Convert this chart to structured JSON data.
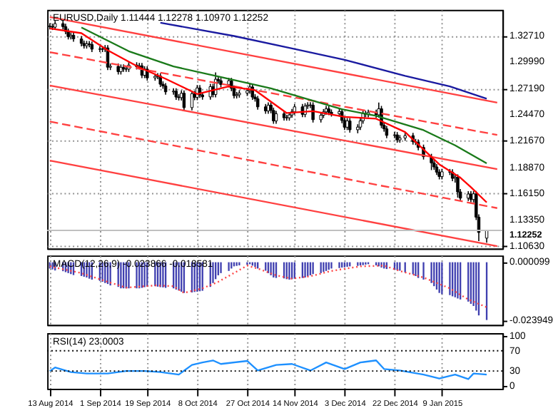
{
  "chart_data": [
    {
      "type": "candlestick",
      "title": "EURUSD,Daily  1.11444 1.12278 1.10970 1.12252",
      "x": [
        "2014-08-13",
        "2014-08-14",
        "2014-08-15",
        "2014-08-18",
        "2014-08-19",
        "2014-08-20",
        "2014-08-21",
        "2014-08-22",
        "2014-08-25",
        "2014-08-26",
        "2014-08-27",
        "2014-08-28",
        "2014-08-29",
        "2014-09-01",
        "2014-09-02",
        "2014-09-03",
        "2014-09-04",
        "2014-09-05",
        "2014-09-08",
        "2014-09-09",
        "2014-09-10",
        "2014-09-11",
        "2014-09-12",
        "2014-09-15",
        "2014-09-16",
        "2014-09-17",
        "2014-09-18",
        "2014-09-19",
        "2014-09-22",
        "2014-09-23",
        "2014-09-24",
        "2014-09-25",
        "2014-09-26",
        "2014-09-29",
        "2014-09-30",
        "2014-10-01",
        "2014-10-02",
        "2014-10-03",
        "2014-10-06",
        "2014-10-07",
        "2014-10-08",
        "2014-10-09",
        "2014-10-10",
        "2014-10-13",
        "2014-10-14",
        "2014-10-15",
        "2014-10-16",
        "2014-10-17",
        "2014-10-20",
        "2014-10-21",
        "2014-10-22",
        "2014-10-23",
        "2014-10-24",
        "2014-10-27",
        "2014-10-28",
        "2014-10-29",
        "2014-10-30",
        "2014-10-31",
        "2014-11-03",
        "2014-11-04",
        "2014-11-05",
        "2014-11-06",
        "2014-11-07",
        "2014-11-10",
        "2014-11-11",
        "2014-11-12",
        "2014-11-13",
        "2014-11-14",
        "2014-11-17",
        "2014-11-18",
        "2014-11-19",
        "2014-11-20",
        "2014-11-21",
        "2014-11-24",
        "2014-11-25",
        "2014-11-26",
        "2014-11-27",
        "2014-11-28",
        "2014-12-01",
        "2014-12-02",
        "2014-12-03",
        "2014-12-04",
        "2014-12-05",
        "2014-12-08",
        "2014-12-09",
        "2014-12-10",
        "2014-12-11",
        "2014-12-12",
        "2014-12-15",
        "2014-12-16",
        "2014-12-17",
        "2014-12-18",
        "2014-12-19",
        "2014-12-22",
        "2014-12-23",
        "2014-12-24",
        "2014-12-26",
        "2014-12-29",
        "2014-12-30",
        "2014-12-31",
        "2015-01-02",
        "2015-01-05",
        "2015-01-06",
        "2015-01-07",
        "2015-01-08",
        "2015-01-09",
        "2015-01-12",
        "2015-01-13",
        "2015-01-14",
        "2015-01-15",
        "2015-01-16",
        "2015-01-19",
        "2015-01-20",
        "2015-01-21",
        "2015-01-22",
        "2015-01-23",
        "2015-01-26"
      ],
      "xlim": [
        "2014-08-12",
        "2015-02-01"
      ],
      "xticks": [
        {
          "value": "2014-08-13",
          "label": null
        },
        {
          "value": "2014-09-01",
          "label": null
        },
        {
          "value": "2014-09-19",
          "label": null
        },
        {
          "value": "2014-10-08",
          "label": null
        },
        {
          "value": "2014-10-27",
          "label": null
        },
        {
          "value": "2014-11-14",
          "label": null
        },
        {
          "value": "2014-12-03",
          "label": null
        },
        {
          "value": "2014-12-22",
          "label": null
        },
        {
          "value": "2015-01-09",
          "label": null
        }
      ],
      "ohlc": [
        [
          1.3375,
          1.3405,
          1.334,
          1.337
        ],
        [
          1.337,
          1.34,
          1.3333,
          1.3363
        ],
        [
          1.3363,
          1.343,
          1.3333,
          1.34
        ],
        [
          1.34,
          1.343,
          1.3339,
          1.3369
        ],
        [
          1.3369,
          1.3399,
          1.3288,
          1.3318
        ],
        [
          1.3318,
          1.3348,
          1.3234,
          1.3264
        ],
        [
          1.3264,
          1.3308,
          1.3234,
          1.3278
        ],
        [
          1.3278,
          1.3308,
          1.321,
          1.324
        ],
        [
          1.324,
          1.327,
          1.3162,
          1.3192
        ],
        [
          1.3192,
          1.3222,
          1.3138,
          1.3168
        ],
        [
          1.3168,
          1.3218,
          1.3138,
          1.3188
        ],
        [
          1.3188,
          1.3218,
          1.3151,
          1.3181
        ],
        [
          1.3181,
          1.3211,
          1.3102,
          1.3132
        ],
        [
          1.3132,
          1.3162,
          1.3101,
          1.3131
        ],
        [
          1.3131,
          1.3162,
          1.3101,
          1.3132
        ],
        [
          1.3132,
          1.3175,
          1.3102,
          1.3145
        ],
        [
          1.3145,
          1.3175,
          1.2912,
          1.2942
        ],
        [
          1.2942,
          1.2981,
          1.2912,
          1.2951
        ],
        [
          1.2951,
          1.2981,
          1.2865,
          1.2895
        ],
        [
          1.2895,
          1.2971,
          1.2865,
          1.2941
        ],
        [
          1.2941,
          1.2971,
          1.2892,
          1.2922
        ],
        [
          1.2922,
          1.2952,
          1.2892,
          1.2922
        ],
        [
          1.2922,
          1.2994,
          1.2892,
          1.2964
        ],
        [
          1.2964,
          1.2994,
          1.2918,
          1.2948
        ],
        [
          1.2948,
          1.2987,
          1.2918,
          1.2957
        ],
        [
          1.2957,
          1.2987,
          1.2827,
          1.2857
        ],
        [
          1.2857,
          1.2952,
          1.2827,
          1.2922
        ],
        [
          1.2922,
          1.2952,
          1.28,
          1.283
        ],
        [
          1.283,
          1.2876,
          1.28,
          1.2846
        ],
        [
          1.2846,
          1.2879,
          1.2816,
          1.2849
        ],
        [
          1.2849,
          1.2879,
          1.2733,
          1.2763
        ],
        [
          1.2763,
          1.2793,
          1.2715,
          1.2745
        ],
        [
          1.2745,
          1.2775,
          1.2653,
          1.2683
        ],
        [
          1.2683,
          1.272,
          1.2653,
          1.269
        ],
        [
          1.269,
          1.272,
          1.2598,
          1.2628
        ],
        [
          1.2628,
          1.2658,
          1.2592,
          1.2622
        ],
        [
          1.2622,
          1.2698,
          1.2592,
          1.2668
        ],
        [
          1.2668,
          1.2698,
          1.2487,
          1.2517
        ],
        [
          1.2517,
          1.2694,
          1.2487,
          1.2664
        ],
        [
          1.2664,
          1.2694,
          1.2595,
          1.2625
        ],
        [
          1.2625,
          1.2754,
          1.2595,
          1.2724
        ],
        [
          1.2724,
          1.2754,
          1.262,
          1.265
        ],
        [
          1.265,
          1.268,
          1.26,
          1.263
        ],
        [
          1.263,
          1.2767,
          1.26,
          1.2737
        ],
        [
          1.2737,
          1.2767,
          1.2625,
          1.2655
        ],
        [
          1.2655,
          1.2887,
          1.2625,
          1.2815
        ],
        [
          1.2815,
          1.2845,
          1.277,
          1.28
        ],
        [
          1.28,
          1.283,
          1.273,
          1.276
        ],
        [
          1.276,
          1.283,
          1.273,
          1.28
        ],
        [
          1.28,
          1.283,
          1.269,
          1.272
        ],
        [
          1.272,
          1.275,
          1.2613,
          1.2643
        ],
        [
          1.2643,
          1.2682,
          1.2613,
          1.2652
        ],
        [
          1.2652,
          1.27,
          1.2622,
          1.267
        ],
        [
          1.267,
          1.2725,
          1.264,
          1.2695
        ],
        [
          1.2695,
          1.2764,
          1.2665,
          1.2734
        ],
        [
          1.2734,
          1.2764,
          1.2598,
          1.2628
        ],
        [
          1.2628,
          1.2658,
          1.258,
          1.261
        ],
        [
          1.261,
          1.264,
          1.2495,
          1.2525
        ],
        [
          1.2525,
          1.2555,
          1.2452,
          1.2482
        ],
        [
          1.2482,
          1.2573,
          1.2452,
          1.2543
        ],
        [
          1.2543,
          1.2573,
          1.2457,
          1.2487
        ],
        [
          1.2487,
          1.2517,
          1.2347,
          1.2377
        ],
        [
          1.2377,
          1.2482,
          1.2347,
          1.2452
        ],
        [
          1.2452,
          1.2482,
          1.238,
          1.241
        ],
        [
          1.241,
          1.244,
          1.238,
          1.241
        ],
        [
          1.241,
          1.247,
          1.238,
          1.244
        ],
        [
          1.244,
          1.2503,
          1.241,
          1.2473
        ],
        [
          1.2473,
          1.2555,
          1.2443,
          1.2525
        ],
        [
          1.2525,
          1.2555,
          1.2416,
          1.2446
        ],
        [
          1.2446,
          1.2563,
          1.2416,
          1.2533
        ],
        [
          1.2533,
          1.2574,
          1.2503,
          1.2544
        ],
        [
          1.2544,
          1.2574,
          1.2513,
          1.2543
        ],
        [
          1.2543,
          1.2573,
          1.236,
          1.239
        ],
        [
          1.239,
          1.2467,
          1.236,
          1.2437
        ],
        [
          1.2437,
          1.2502,
          1.2407,
          1.2472
        ],
        [
          1.2472,
          1.2534,
          1.2442,
          1.2504
        ],
        [
          1.2504,
          1.2534,
          1.2438,
          1.2468
        ],
        [
          1.2468,
          1.2498,
          1.2423,
          1.2453
        ],
        [
          1.2453,
          1.2506,
          1.2423,
          1.2476
        ],
        [
          1.2476,
          1.2506,
          1.2352,
          1.2382
        ],
        [
          1.2382,
          1.2412,
          1.2281,
          1.2311
        ],
        [
          1.2311,
          1.2407,
          1.2281,
          1.2377
        ],
        [
          1.2377,
          1.2407,
          1.2254,
          1.2284
        ],
        [
          1.2284,
          1.2342,
          1.2247,
          1.2312
        ],
        [
          1.2312,
          1.2408,
          1.2282,
          1.2378
        ],
        [
          1.2378,
          1.2485,
          1.2348,
          1.2455
        ],
        [
          1.2455,
          1.2485,
          1.2415,
          1.2445
        ],
        [
          1.2445,
          1.2496,
          1.2415,
          1.2466
        ],
        [
          1.2466,
          1.2496,
          1.2411,
          1.2441
        ],
        [
          1.2441,
          1.257,
          1.2411,
          1.2505
        ],
        [
          1.2505,
          1.2535,
          1.2301,
          1.2331
        ],
        [
          1.2331,
          1.2361,
          1.2264,
          1.2294
        ],
        [
          1.2294,
          1.2324,
          1.2195,
          1.2225
        ],
        [
          1.2225,
          1.226,
          1.2195,
          1.223
        ],
        [
          1.223,
          1.226,
          1.2148,
          1.2178
        ],
        [
          1.2178,
          1.2228,
          1.2148,
          1.2198
        ],
        [
          1.2198,
          1.2252,
          1.2168,
          1.2222
        ],
        [
          1.2222,
          1.2252,
          1.2128,
          1.2158
        ],
        [
          1.2158,
          1.2188,
          1.2123,
          1.2153
        ],
        [
          1.2153,
          1.2183,
          1.2068,
          1.2098
        ],
        [
          1.2098,
          1.2128,
          1.1971,
          1.2001
        ],
        [
          1.2001,
          1.2031,
          1.186,
          1.1936
        ],
        [
          1.1936,
          1.1966,
          1.1863,
          1.1893
        ],
        [
          1.1893,
          1.1923,
          1.1808,
          1.1838
        ],
        [
          1.1838,
          1.1868,
          1.1762,
          1.1792
        ],
        [
          1.1792,
          1.1872,
          1.1762,
          1.1842
        ],
        [
          1.1842,
          1.1872,
          1.1808,
          1.1838
        ],
        [
          1.1838,
          1.1868,
          1.1743,
          1.1773
        ],
        [
          1.1773,
          1.1815,
          1.1729,
          1.1785
        ],
        [
          1.1785,
          1.1815,
          1.157,
          1.163
        ],
        [
          1.163,
          1.166,
          1.1535,
          1.1565
        ],
        [
          1.1565,
          1.1638,
          1.1535,
          1.1608
        ],
        [
          1.1608,
          1.1638,
          1.152,
          1.155
        ],
        [
          1.155,
          1.164,
          1.152,
          1.161
        ],
        [
          1.161,
          1.164,
          1.1335,
          1.1365
        ],
        [
          1.1365,
          1.1395,
          1.1114,
          1.1204
        ],
        [
          1.11444,
          1.12278,
          1.1097,
          1.12252
        ]
      ],
      "series": [
        {
          "type": "line",
          "color": "#ff4040",
          "line_style": "solid",
          "x": [
            "2014-08-13",
            "2015-01-30"
          ],
          "values": [
            1.347,
            1.257
          ]
        },
        {
          "type": "line",
          "color": "#ff4040",
          "line_style": "dashed",
          "x": [
            "2014-08-13",
            "2015-01-30"
          ],
          "values": [
            1.31,
            1.223
          ]
        },
        {
          "type": "line",
          "color": "#ff4040",
          "line_style": "solid",
          "x": [
            "2014-08-13",
            "2015-01-30"
          ],
          "values": [
            1.275,
            1.187
          ]
        },
        {
          "type": "line",
          "color": "#ff4040",
          "line_style": "dashed",
          "x": [
            "2014-08-13",
            "2015-01-30"
          ],
          "values": [
            1.237,
            1.146
          ]
        },
        {
          "type": "line",
          "color": "#ff4040",
          "line_style": "solid",
          "x": [
            "2014-08-13",
            "2015-01-30"
          ],
          "values": [
            1.196,
            1.106
          ]
        },
        {
          "type": "line",
          "color": "#1a1aa0",
          "line_style": "solid",
          "x": [
            "2014-09-24",
            "2014-10-22",
            "2014-11-13",
            "2014-12-03",
            "2014-12-26",
            "2015-01-12",
            "2015-01-26"
          ],
          "values": [
            1.341,
            1.327,
            1.314,
            1.302,
            1.285,
            1.274,
            1.261
          ]
        },
        {
          "type": "line",
          "color": "#1a7a1a",
          "line_style": "solid",
          "x": [
            "2014-08-25",
            "2014-09-12",
            "2014-09-29",
            "2014-10-15",
            "2014-11-05",
            "2014-12-02",
            "2014-12-15",
            "2015-01-02",
            "2015-01-14",
            "2015-01-26"
          ],
          "values": [
            1.336,
            1.311,
            1.295,
            1.285,
            1.272,
            1.25,
            1.243,
            1.228,
            1.212,
            1.193
          ]
        },
        {
          "type": "line",
          "color": "#ff0000",
          "line_style": "solid",
          "x": [
            "2014-08-13",
            "2014-08-25",
            "2014-09-04",
            "2014-09-16",
            "2014-09-26",
            "2014-10-08",
            "2014-10-20",
            "2014-10-30",
            "2014-11-11",
            "2014-11-21",
            "2014-12-03",
            "2014-12-15",
            "2014-12-26",
            "2015-01-08",
            "2015-01-16",
            "2015-01-20",
            "2015-01-26"
          ],
          "values": [
            1.335,
            1.33,
            1.312,
            1.294,
            1.282,
            1.266,
            1.274,
            1.27,
            1.246,
            1.248,
            1.242,
            1.24,
            1.226,
            1.192,
            1.178,
            1.168,
            1.152
          ]
        }
      ],
      "ref_lines": [
        {
          "axis": "y",
          "value": 1.12252,
          "label": "1.12252",
          "color": "#c0c0c0"
        }
      ],
      "ylim": [
        1.1035,
        1.3545
      ],
      "yticks": [
        {
          "value": 1.3271,
          "label": "1.32710"
        },
        {
          "value": 1.2999,
          "label": "1.29990"
        },
        {
          "value": 1.2719,
          "label": "1.27190"
        },
        {
          "value": 1.2447,
          "label": "1.24470"
        },
        {
          "value": 1.2167,
          "label": "1.21670"
        },
        {
          "value": 1.1887,
          "label": "1.18870"
        },
        {
          "value": 1.1615,
          "label": "1.16150"
        },
        {
          "value": 1.1335,
          "label": "1.13350"
        },
        {
          "value": 1.1063,
          "label": "1.10630"
        }
      ],
      "grid": true,
      "tick_labels": "y"
    },
    {
      "type": "bar",
      "title": "MACD(12,26,9) -0.023866 -0.018581",
      "x": [
        "2014-08-13",
        "2014-08-14",
        "2014-08-15",
        "2014-08-18",
        "2014-08-19",
        "2014-08-20",
        "2014-08-21",
        "2014-08-22",
        "2014-08-25",
        "2014-08-26",
        "2014-08-27",
        "2014-08-28",
        "2014-08-29",
        "2014-09-01",
        "2014-09-02",
        "2014-09-03",
        "2014-09-04",
        "2014-09-05",
        "2014-09-08",
        "2014-09-09",
        "2014-09-10",
        "2014-09-11",
        "2014-09-12",
        "2014-09-15",
        "2014-09-16",
        "2014-09-17",
        "2014-09-18",
        "2014-09-19",
        "2014-09-22",
        "2014-09-23",
        "2014-09-24",
        "2014-09-25",
        "2014-09-26",
        "2014-09-29",
        "2014-09-30",
        "2014-10-01",
        "2014-10-02",
        "2014-10-03",
        "2014-10-06",
        "2014-10-07",
        "2014-10-08",
        "2014-10-09",
        "2014-10-10",
        "2014-10-13",
        "2014-10-14",
        "2014-10-15",
        "2014-10-16",
        "2014-10-17",
        "2014-10-20",
        "2014-10-21",
        "2014-10-22",
        "2014-10-23",
        "2014-10-24",
        "2014-10-27",
        "2014-10-28",
        "2014-10-29",
        "2014-10-30",
        "2014-10-31",
        "2014-11-03",
        "2014-11-04",
        "2014-11-05",
        "2014-11-06",
        "2014-11-07",
        "2014-11-10",
        "2014-11-11",
        "2014-11-12",
        "2014-11-13",
        "2014-11-14",
        "2014-11-17",
        "2014-11-18",
        "2014-11-19",
        "2014-11-20",
        "2014-11-21",
        "2014-11-24",
        "2014-11-25",
        "2014-11-26",
        "2014-11-27",
        "2014-11-28",
        "2014-12-01",
        "2014-12-02",
        "2014-12-03",
        "2014-12-04",
        "2014-12-05",
        "2014-12-08",
        "2014-12-09",
        "2014-12-10",
        "2014-12-11",
        "2014-12-12",
        "2014-12-15",
        "2014-12-16",
        "2014-12-17",
        "2014-12-18",
        "2014-12-19",
        "2014-12-22",
        "2014-12-23",
        "2014-12-24",
        "2014-12-26",
        "2014-12-29",
        "2014-12-30",
        "2014-12-31",
        "2015-01-02",
        "2015-01-05",
        "2015-01-06",
        "2015-01-07",
        "2015-01-08",
        "2015-01-09",
        "2015-01-12",
        "2015-01-13",
        "2015-01-14",
        "2015-01-15",
        "2015-01-16",
        "2015-01-19",
        "2015-01-20",
        "2015-01-21",
        "2015-01-22",
        "2015-01-23",
        "2015-01-26"
      ],
      "xlim": [
        "2014-08-12",
        "2015-02-01"
      ],
      "xticks": [
        {
          "value": "2014-08-13",
          "label": null
        },
        {
          "value": "2014-09-01",
          "label": null
        },
        {
          "value": "2014-09-19",
          "label": null
        },
        {
          "value": "2014-10-08",
          "label": null
        },
        {
          "value": "2014-10-27",
          "label": null
        },
        {
          "value": "2014-11-14",
          "label": null
        },
        {
          "value": "2014-12-03",
          "label": null
        },
        {
          "value": "2014-12-22",
          "label": null
        },
        {
          "value": "2015-01-09",
          "label": null
        }
      ],
      "series": [
        {
          "type": "bar",
          "color": "#4040b0",
          "values": [
            -0.0026,
            -0.003,
            -0.0034,
            -0.0037,
            -0.0041,
            -0.0045,
            -0.0049,
            -0.0053,
            -0.0057,
            -0.006,
            -0.0063,
            -0.0068,
            -0.0072,
            -0.0077,
            -0.0081,
            -0.0086,
            -0.009,
            -0.0096,
            -0.0102,
            -0.0108,
            -0.0108,
            -0.0108,
            -0.0108,
            -0.0108,
            -0.0108,
            -0.0106,
            -0.0103,
            -0.0101,
            -0.0099,
            -0.0101,
            -0.0103,
            -0.0104,
            -0.0106,
            -0.0108,
            -0.0113,
            -0.0117,
            -0.0122,
            -0.0127,
            -0.0125,
            -0.0123,
            -0.0122,
            -0.012,
            -0.0118,
            -0.0102,
            -0.0086,
            -0.007,
            -0.0054,
            -0.0045,
            -0.0036,
            -0.0026,
            -0.0017,
            -0.0015,
            -0.0013,
            -0.001,
            -0.0008,
            -0.0014,
            -0.002,
            -0.0026,
            -0.0035,
            -0.0045,
            -0.0054,
            -0.0063,
            -0.0065,
            -0.0067,
            -0.007,
            -0.0072,
            -0.007,
            -0.0068,
            -0.0065,
            -0.0063,
            -0.0058,
            -0.0054,
            -0.0049,
            -0.0045,
            -0.004,
            -0.0036,
            -0.0031,
            -0.0026,
            -0.0024,
            -0.0022,
            -0.0021,
            -0.0019,
            -0.0017,
            -0.0015,
            -0.0013,
            -0.0012,
            -0.001,
            -0.0008,
            -0.0013,
            -0.0017,
            -0.0022,
            -0.0026,
            -0.0028,
            -0.0031,
            -0.0033,
            -0.0035,
            -0.0042,
            -0.005,
            -0.0057,
            -0.0065,
            -0.0072,
            -0.0086,
            -0.0099,
            -0.0113,
            -0.0127,
            -0.0132,
            -0.0136,
            -0.0141,
            -0.0145,
            -0.015,
            -0.0154,
            -0.0163,
            -0.0172,
            -0.0181,
            -0.02,
            -0.022,
            -0.0239
          ]
        },
        {
          "type": "line",
          "color": "#ff4040",
          "line_style": "dotted",
          "x": [
            "2014-08-13",
            "2014-08-25",
            "2014-09-04",
            "2014-09-11",
            "2014-09-22",
            "2014-09-29",
            "2014-10-03",
            "2014-10-10",
            "2014-10-16",
            "2014-10-27",
            "2014-10-31",
            "2014-11-07",
            "2014-11-13",
            "2014-11-20",
            "2014-11-28",
            "2014-12-09",
            "2014-12-18",
            "2014-12-24",
            "2015-01-02",
            "2015-01-12",
            "2015-01-19",
            "2015-01-26"
          ],
          "values": [
            -0.0017,
            -0.0045,
            -0.0081,
            -0.0105,
            -0.0096,
            -0.0099,
            -0.0127,
            -0.0108,
            -0.0081,
            -0.0014,
            -0.0026,
            -0.0054,
            -0.0068,
            -0.0058,
            -0.0036,
            -0.0017,
            -0.0014,
            -0.0036,
            -0.0063,
            -0.0108,
            -0.0154,
            -0.0186
          ]
        }
      ],
      "ylim": [
        -0.0259,
        0.0028
      ],
      "yticks": [
        {
          "value": 9.9e-05,
          "label": "0.000099"
        },
        {
          "value": -0.023949,
          "label": "-0.023949"
        }
      ],
      "grid": "x",
      "tick_labels": "y"
    },
    {
      "type": "line",
      "title": "RSI(14) 23.0003",
      "xlim": [
        "2014-08-12",
        "2015-02-01"
      ],
      "xticks": [
        {
          "value": "2014-08-13",
          "label": "13 Aug 2014"
        },
        {
          "value": "2014-09-01",
          "label": "1 Sep 2014"
        },
        {
          "value": "2014-09-19",
          "label": "19 Sep 2014"
        },
        {
          "value": "2014-10-08",
          "label": "8 Oct 2014"
        },
        {
          "value": "2014-10-27",
          "label": "27 Oct 2014"
        },
        {
          "value": "2014-11-14",
          "label": "14 Nov 2014"
        },
        {
          "value": "2014-12-03",
          "label": "3 Dec 2014"
        },
        {
          "value": "2014-12-22",
          "label": "22 Dec 2014"
        },
        {
          "value": "2015-01-09",
          "label": "9 Jan 2015"
        }
      ],
      "series": [
        {
          "type": "line",
          "color": "#1e90ff",
          "line_style": "solid",
          "x": [
            "2014-08-13",
            "2014-08-15",
            "2014-08-21",
            "2014-08-27",
            "2014-09-04",
            "2014-09-11",
            "2014-09-18",
            "2014-09-24",
            "2014-10-01",
            "2014-10-06",
            "2014-10-10",
            "2014-10-14",
            "2014-10-17",
            "2014-10-27",
            "2014-10-31",
            "2014-11-07",
            "2014-11-13",
            "2014-11-20",
            "2014-11-26",
            "2014-12-03",
            "2014-12-09",
            "2014-12-15",
            "2014-12-18",
            "2014-12-24",
            "2015-01-02",
            "2015-01-08",
            "2015-01-14",
            "2015-01-19",
            "2015-01-21",
            "2015-01-26"
          ],
          "values": [
            30,
            37,
            28,
            25,
            25,
            30,
            30,
            28,
            23,
            42,
            47,
            51,
            44,
            50,
            31,
            42,
            44,
            31,
            47,
            34,
            47,
            51,
            34,
            31,
            23,
            15,
            23,
            14,
            25,
            23
          ]
        }
      ],
      "ref_lines": [
        {
          "axis": "y",
          "value": 70,
          "color": "#000000",
          "line_style": "dotted"
        },
        {
          "axis": "y",
          "value": 30,
          "color": "#000000",
          "line_style": "dotted"
        }
      ],
      "ylim": [
        -5,
        105
      ],
      "yticks": [
        100,
        70,
        30,
        0
      ],
      "grid": "x"
    }
  ]
}
